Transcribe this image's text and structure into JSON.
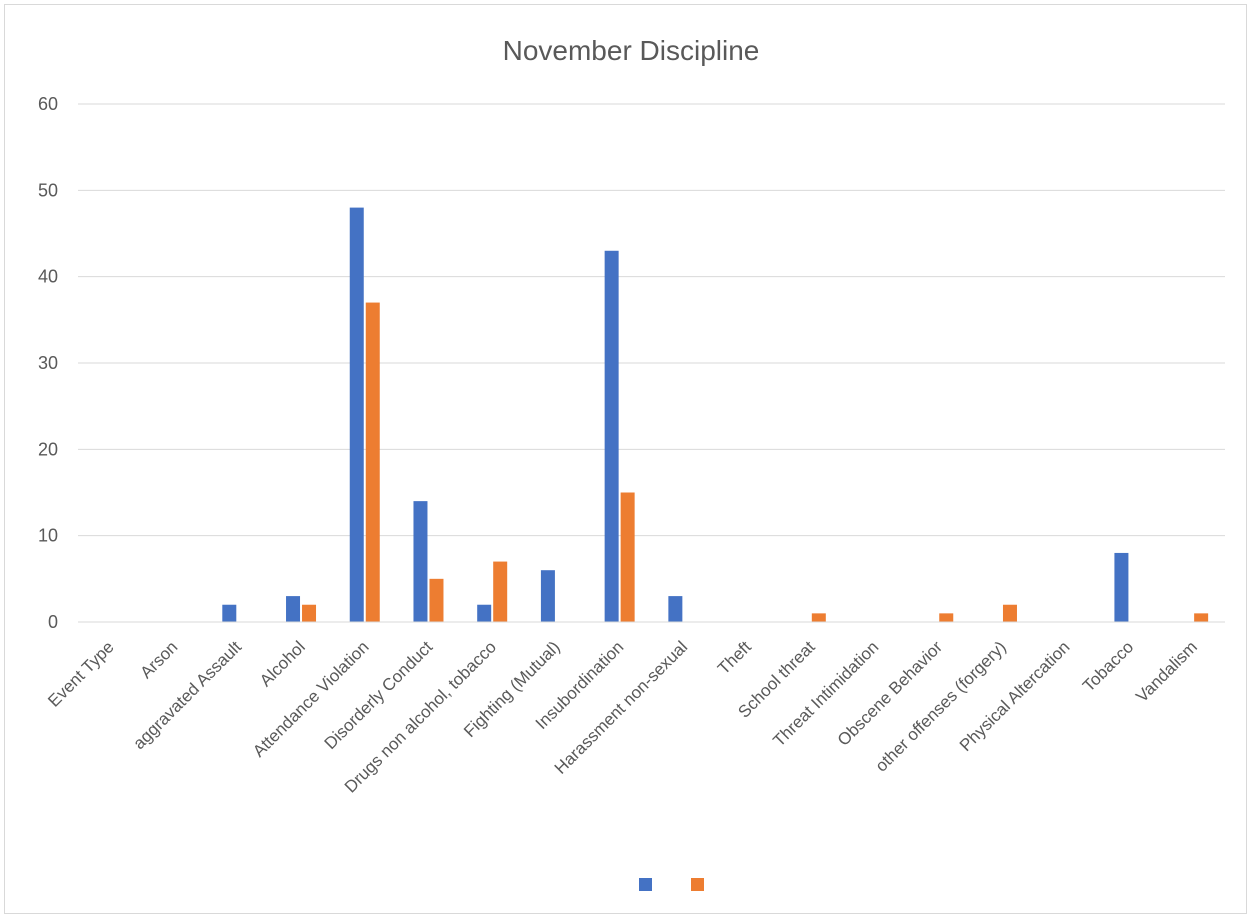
{
  "chart_data": {
    "type": "bar",
    "title": "November Discipline",
    "xlabel": "",
    "ylabel": "",
    "ylim": [
      0,
      60
    ],
    "yticks": [
      0,
      10,
      20,
      30,
      40,
      50,
      60
    ],
    "grid": true,
    "legend_position": "bottom",
    "categories": [
      "Event Type",
      "Arson",
      "aggravated Assault",
      "Alcohol",
      "Attendance Violation",
      "Disorderly Conduct",
      "Drugs non alcohol, tobacco",
      "Fighting (Mutual)",
      "Insubordination",
      "Harassment non-sexual",
      "Theft",
      "School threat",
      "Threat Intimidation",
      "Obscene Behavior",
      "other offenses (forgery)",
      "Physical Altercation",
      "Tobacco",
      "Vandalism"
    ],
    "series": [
      {
        "color": "#4472C4",
        "values": [
          0,
          0,
          2,
          3,
          48,
          14,
          2,
          6,
          43,
          3,
          0,
          0,
          0,
          0,
          0,
          0,
          8,
          0
        ]
      },
      {
        "color": "#ED7D31",
        "values": [
          0,
          0,
          0,
          2,
          37,
          5,
          7,
          0,
          15,
          0,
          0,
          1,
          0,
          1,
          2,
          0,
          0,
          1
        ]
      }
    ]
  }
}
